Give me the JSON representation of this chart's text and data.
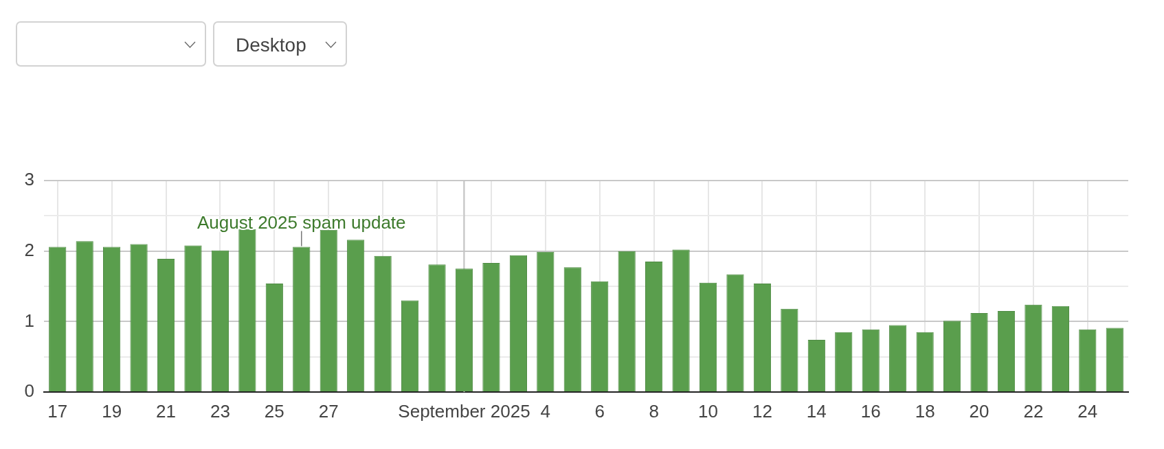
{
  "chart_data": {
    "type": "bar",
    "x": [
      "2025-08-17",
      "2025-08-18",
      "2025-08-19",
      "2025-08-20",
      "2025-08-21",
      "2025-08-22",
      "2025-08-23",
      "2025-08-24",
      "2025-08-25",
      "2025-08-26",
      "2025-08-27",
      "2025-08-28",
      "2025-08-29",
      "2025-08-30",
      "2025-08-31",
      "2025-09-01",
      "2025-09-02",
      "2025-09-03",
      "2025-09-04",
      "2025-09-05",
      "2025-09-06",
      "2025-09-07",
      "2025-09-08",
      "2025-09-09",
      "2025-09-10",
      "2025-09-11",
      "2025-09-12",
      "2025-09-13",
      "2025-09-14",
      "2025-09-15",
      "2025-09-16",
      "2025-09-17",
      "2025-09-18",
      "2025-09-19",
      "2025-09-20",
      "2025-09-21",
      "2025-09-22",
      "2025-09-23",
      "2025-09-24",
      "2025-09-25"
    ],
    "values": [
      2.06,
      2.14,
      2.06,
      2.1,
      1.89,
      2.08,
      2.01,
      2.31,
      1.54,
      2.06,
      2.3,
      2.16,
      1.93,
      1.3,
      1.81,
      1.75,
      1.83,
      1.94,
      1.99,
      1.77,
      1.57,
      2.0,
      1.85,
      2.02,
      1.55,
      1.67,
      1.54,
      1.18,
      0.74,
      0.85,
      0.89,
      0.95,
      0.85,
      1.01,
      1.12,
      1.15,
      1.24,
      1.22,
      0.89,
      0.91
    ],
    "color": "#5a9e4d",
    "xlim": [
      "2025-08-16T12:00",
      "2025-09-25T12:00"
    ],
    "xticks": [
      {
        "value": "2025-08-17",
        "label": "17"
      },
      {
        "value": "2025-08-19",
        "label": "19"
      },
      {
        "value": "2025-08-21",
        "label": "21"
      },
      {
        "value": "2025-08-23",
        "label": "23"
      },
      {
        "value": "2025-08-25",
        "label": "25"
      },
      {
        "value": "2025-08-27",
        "label": "27"
      },
      {
        "value": "2025-08-29",
        "label": null
      },
      {
        "value": "2025-08-31",
        "label": null
      },
      {
        "value": "2025-09-01",
        "label": "September 2025"
      },
      {
        "value": "2025-09-02",
        "label": null
      },
      {
        "value": "2025-09-04",
        "label": "4"
      },
      {
        "value": "2025-09-06",
        "label": "6"
      },
      {
        "value": "2025-09-08",
        "label": "8"
      },
      {
        "value": "2025-09-10",
        "label": "10"
      },
      {
        "value": "2025-09-12",
        "label": "12"
      },
      {
        "value": "2025-09-14",
        "label": "14"
      },
      {
        "value": "2025-09-16",
        "label": "16"
      },
      {
        "value": "2025-09-18",
        "label": "18"
      },
      {
        "value": "2025-09-20",
        "label": "20"
      },
      {
        "value": "2025-09-22",
        "label": "22"
      },
      {
        "value": "2025-09-24",
        "label": "24"
      }
    ],
    "ylim": [
      0,
      3
    ],
    "yticks": [
      0,
      {
        "value": 0.5,
        "label": null
      },
      1,
      {
        "value": 1.5,
        "label": null
      },
      2,
      {
        "value": 2.5,
        "label": null
      },
      3
    ],
    "grid": true,
    "ref_lines": [
      {
        "axis": "x",
        "value": "2025-09-01",
        "color": "#c4c4c4"
      }
    ],
    "annotations": [
      "Desktop",
      {
        "text": "August 2025 spam update",
        "x": "2025-08-26",
        "y": 2.06
      }
    ]
  }
}
